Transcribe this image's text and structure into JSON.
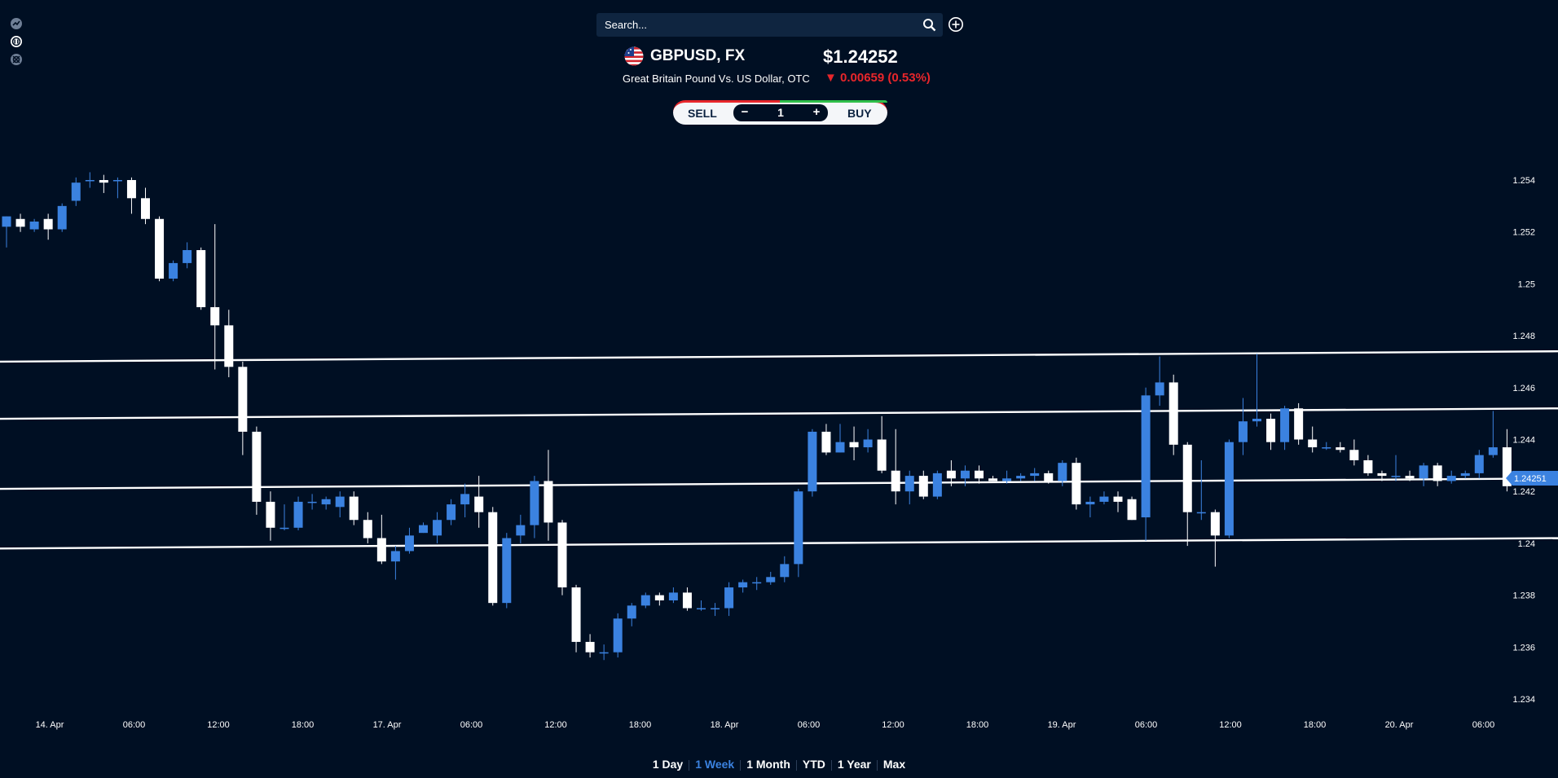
{
  "search": {
    "placeholder": "Search..."
  },
  "instrument": {
    "symbol": "GBPUSD, FX",
    "price": "$1.24252",
    "name": "Great Britain Pound Vs. US Dollar, OTC",
    "change": "▼ 0.00659 (0.53%)"
  },
  "trade": {
    "sell_label": "SELL",
    "buy_label": "BUY",
    "minus": "−",
    "plus": "+",
    "quantity": "1"
  },
  "ranges": [
    {
      "label": "1 Day",
      "active": false
    },
    {
      "label": "1 Week",
      "active": true
    },
    {
      "label": "1 Month",
      "active": false
    },
    {
      "label": "YTD",
      "active": false
    },
    {
      "label": "1 Year",
      "active": false
    },
    {
      "label": "Max",
      "active": false
    }
  ],
  "colors": {
    "background": "#000f23",
    "bullish": "#3b82e0",
    "bearish": "#ffffff",
    "negative": "#e8262b",
    "positive": "#2fbf4a"
  },
  "icons": [
    "chart-check-icon",
    "n-badge-icon",
    "settings-circle-icon",
    "search-icon",
    "add-circle-icon",
    "us-flag-icon"
  ],
  "chart_data": {
    "type": "candlestick",
    "ylim": [
      1.234,
      1.2545
    ],
    "y_ticks": [
      "1.254",
      "1.252",
      "1.25",
      "1.248",
      "1.246",
      "1.244",
      "1.242",
      "1.24",
      "1.238",
      "1.236",
      "1.234"
    ],
    "x_ticks": [
      "14. Apr",
      "06:00",
      "12:00",
      "18:00",
      "17. Apr",
      "06:00",
      "12:00",
      "18:00",
      "18. Apr",
      "06:00",
      "12:00",
      "18:00",
      "19. Apr",
      "06:00",
      "12:00",
      "18:00",
      "20. Apr",
      "06:00"
    ],
    "current_price_label": "1.24251",
    "trend_lines": [
      {
        "start": 1.247,
        "end": 1.2474
      },
      {
        "start": 1.2448,
        "end": 1.2452
      },
      {
        "start": 1.2421,
        "end": 1.2425
      },
      {
        "start": 1.2398,
        "end": 1.2402
      }
    ],
    "candles": [
      [
        1.2522,
        1.2526,
        1.2526,
        1.2514
      ],
      [
        1.2525,
        1.2522,
        1.2527,
        1.252
      ],
      [
        1.2521,
        1.2524,
        1.2525,
        1.252
      ],
      [
        1.2525,
        1.2521,
        1.2527,
        1.2517
      ],
      [
        1.2521,
        1.253,
        1.2531,
        1.252
      ],
      [
        1.2532,
        1.2539,
        1.2541,
        1.253
      ],
      [
        1.254,
        1.254,
        1.2543,
        1.2537
      ],
      [
        1.254,
        1.2539,
        1.2542,
        1.2535
      ],
      [
        1.254,
        1.254,
        1.2541,
        1.2533
      ],
      [
        1.254,
        1.2533,
        1.2541,
        1.2527
      ],
      [
        1.2533,
        1.2525,
        1.2537,
        1.2523
      ],
      [
        1.2525,
        1.2502,
        1.2526,
        1.2501
      ],
      [
        1.2502,
        1.2508,
        1.2509,
        1.2501
      ],
      [
        1.2508,
        1.2513,
        1.2516,
        1.2506
      ],
      [
        1.2513,
        1.2491,
        1.2514,
        1.249
      ],
      [
        1.2491,
        1.2484,
        1.2523,
        1.2467
      ],
      [
        1.2484,
        1.2468,
        1.249,
        1.2464
      ],
      [
        1.2468,
        1.2443,
        1.247,
        1.2434
      ],
      [
        1.2443,
        1.2416,
        1.2445,
        1.2411
      ],
      [
        1.2416,
        1.2406,
        1.242,
        1.2401
      ],
      [
        1.2406,
        1.2406,
        1.2415,
        1.2405
      ],
      [
        1.2406,
        1.2416,
        1.2418,
        1.2405
      ],
      [
        1.2416,
        1.2416,
        1.2419,
        1.2413
      ],
      [
        1.2415,
        1.2417,
        1.2418,
        1.2413
      ],
      [
        1.2414,
        1.2418,
        1.242,
        1.241
      ],
      [
        1.2418,
        1.2409,
        1.242,
        1.2407
      ],
      [
        1.2409,
        1.2402,
        1.2412,
        1.24
      ],
      [
        1.2402,
        1.2393,
        1.2411,
        1.2392
      ],
      [
        1.2393,
        1.2397,
        1.2399,
        1.2386
      ],
      [
        1.2397,
        1.2403,
        1.2406,
        1.2396
      ],
      [
        1.2404,
        1.2407,
        1.2408,
        1.2404
      ],
      [
        1.2403,
        1.2409,
        1.2412,
        1.24
      ],
      [
        1.2409,
        1.2415,
        1.2417,
        1.2407
      ],
      [
        1.2415,
        1.2419,
        1.2423,
        1.241
      ],
      [
        1.2418,
        1.2412,
        1.2426,
        1.2406
      ],
      [
        1.2412,
        1.2377,
        1.2414,
        1.2376
      ],
      [
        1.2377,
        1.2402,
        1.2404,
        1.2375
      ],
      [
        1.2403,
        1.2407,
        1.2411,
        1.24
      ],
      [
        1.2407,
        1.2424,
        1.2426,
        1.2402
      ],
      [
        1.2424,
        1.2408,
        1.2436,
        1.2401
      ],
      [
        1.2408,
        1.2383,
        1.2409,
        1.238
      ],
      [
        1.2383,
        1.2362,
        1.2384,
        1.2358
      ],
      [
        1.2362,
        1.2358,
        1.2365,
        1.2356
      ],
      [
        1.2358,
        1.2358,
        1.2361,
        1.2355
      ],
      [
        1.2358,
        1.2371,
        1.2373,
        1.2356
      ],
      [
        1.2371,
        1.2376,
        1.2377,
        1.2368
      ],
      [
        1.2376,
        1.238,
        1.2381,
        1.2375
      ],
      [
        1.238,
        1.2378,
        1.2381,
        1.2376
      ],
      [
        1.2378,
        1.2381,
        1.2383,
        1.2377
      ],
      [
        1.2381,
        1.2375,
        1.2383,
        1.2374
      ],
      [
        1.2375,
        1.2375,
        1.2378,
        1.2374
      ],
      [
        1.2375,
        1.2375,
        1.2377,
        1.2372
      ],
      [
        1.2375,
        1.2383,
        1.2385,
        1.2372
      ],
      [
        1.2383,
        1.2385,
        1.2386,
        1.2381
      ],
      [
        1.2385,
        1.2385,
        1.2387,
        1.2382
      ],
      [
        1.2385,
        1.2387,
        1.2389,
        1.2384
      ],
      [
        1.2387,
        1.2392,
        1.2395,
        1.2385
      ],
      [
        1.2392,
        1.242,
        1.2421,
        1.2387
      ],
      [
        1.242,
        1.2443,
        1.2444,
        1.2418
      ],
      [
        1.2443,
        1.2435,
        1.2446,
        1.2434
      ],
      [
        1.2435,
        1.2439,
        1.2446,
        1.2435
      ],
      [
        1.2439,
        1.2437,
        1.2445,
        1.2432
      ],
      [
        1.2437,
        1.244,
        1.2444,
        1.2435
      ],
      [
        1.244,
        1.2428,
        1.2449,
        1.2427
      ],
      [
        1.2428,
        1.242,
        1.2444,
        1.2415
      ],
      [
        1.242,
        1.2426,
        1.2428,
        1.2415
      ],
      [
        1.2426,
        1.2418,
        1.2428,
        1.2417
      ],
      [
        1.2418,
        1.2427,
        1.2428,
        1.2417
      ],
      [
        1.2428,
        1.2425,
        1.2432,
        1.2422
      ],
      [
        1.2425,
        1.2428,
        1.243,
        1.2422
      ],
      [
        1.2428,
        1.2425,
        1.243,
        1.2423
      ],
      [
        1.2425,
        1.2424,
        1.2426,
        1.2424
      ],
      [
        1.2424,
        1.2425,
        1.2428,
        1.2423
      ],
      [
        1.2425,
        1.2426,
        1.2427,
        1.2424
      ],
      [
        1.2426,
        1.2427,
        1.2429,
        1.2424
      ],
      [
        1.2427,
        1.2424,
        1.2428,
        1.2423
      ],
      [
        1.2424,
        1.2431,
        1.2432,
        1.2422
      ],
      [
        1.2431,
        1.2415,
        1.2433,
        1.2413
      ],
      [
        1.2415,
        1.2416,
        1.2418,
        1.241
      ],
      [
        1.2416,
        1.2418,
        1.242,
        1.2415
      ],
      [
        1.2418,
        1.2416,
        1.242,
        1.2412
      ],
      [
        1.2417,
        1.2409,
        1.2418,
        1.2409
      ],
      [
        1.241,
        1.2457,
        1.246,
        1.2401
      ],
      [
        1.2457,
        1.2462,
        1.2472,
        1.2453
      ],
      [
        1.2462,
        1.2438,
        1.2465,
        1.2434
      ],
      [
        1.2438,
        1.2412,
        1.2439,
        1.2399
      ],
      [
        1.2412,
        1.2412,
        1.2432,
        1.2409
      ],
      [
        1.2412,
        1.2403,
        1.2413,
        1.2391
      ],
      [
        1.2403,
        1.2439,
        1.244,
        1.2402
      ],
      [
        1.2439,
        1.2447,
        1.2456,
        1.2434
      ],
      [
        1.2447,
        1.2448,
        1.2473,
        1.2445
      ],
      [
        1.2448,
        1.2439,
        1.245,
        1.2436
      ],
      [
        1.2439,
        1.2452,
        1.2453,
        1.2436
      ],
      [
        1.2452,
        1.244,
        1.2454,
        1.2438
      ],
      [
        1.244,
        1.2437,
        1.2445,
        1.2435
      ],
      [
        1.2437,
        1.2437,
        1.2439,
        1.2436
      ],
      [
        1.2437,
        1.2436,
        1.2439,
        1.2435
      ],
      [
        1.2436,
        1.2432,
        1.244,
        1.243
      ],
      [
        1.2432,
        1.2427,
        1.2434,
        1.2426
      ],
      [
        1.2427,
        1.2426,
        1.2428,
        1.2424
      ],
      [
        1.2426,
        1.2426,
        1.2434,
        1.2424
      ],
      [
        1.2426,
        1.2425,
        1.2428,
        1.2424
      ],
      [
        1.2425,
        1.243,
        1.2431,
        1.2422
      ],
      [
        1.243,
        1.2424,
        1.2431,
        1.2422
      ],
      [
        1.2424,
        1.2426,
        1.2428,
        1.2423
      ],
      [
        1.2426,
        1.2427,
        1.2428,
        1.2425
      ],
      [
        1.2427,
        1.2434,
        1.2436,
        1.2425
      ],
      [
        1.2434,
        1.2437,
        1.2451,
        1.2433
      ],
      [
        1.2437,
        1.2422,
        1.2444,
        1.242
      ]
    ]
  }
}
